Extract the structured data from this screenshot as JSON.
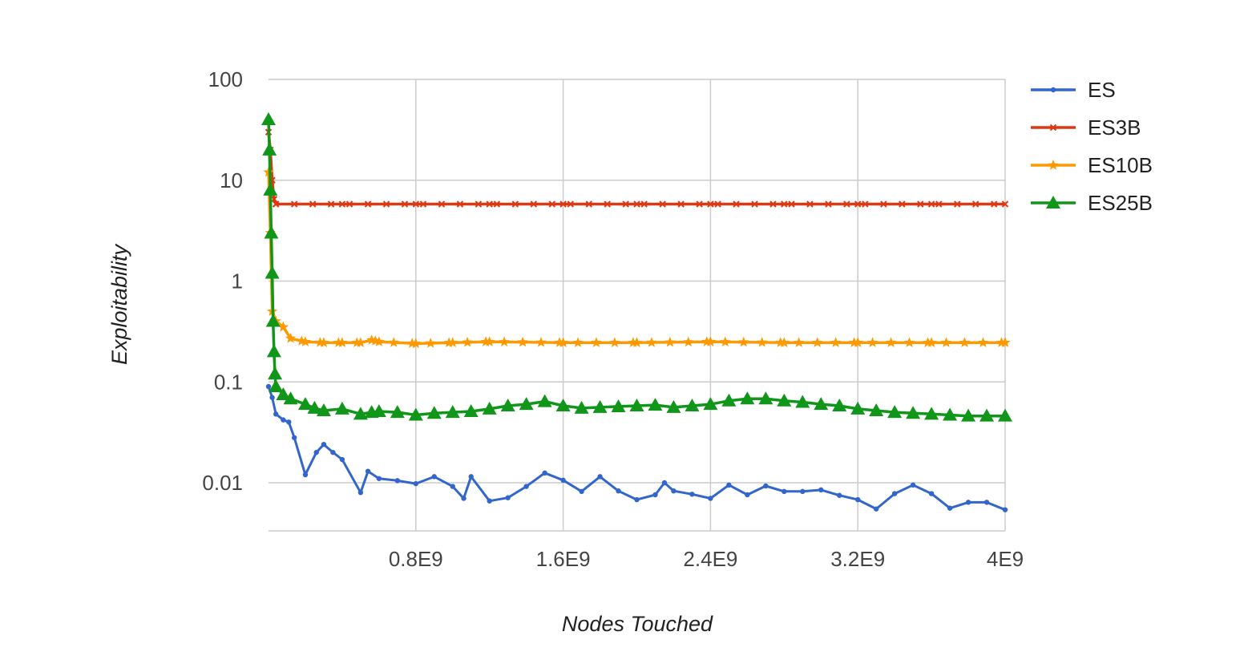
{
  "chart_data": {
    "type": "line",
    "title": "",
    "xlabel": "Nodes Touched",
    "ylabel": "Exploitability",
    "yscale": "log",
    "grid": true,
    "legend_position": "right",
    "xlim": [
      0,
      4000000000
    ],
    "ylim": [
      0.004,
      100
    ],
    "x_ticks": [
      {
        "value": 800000000,
        "label": "0.8E9"
      },
      {
        "value": 1600000000,
        "label": "1.6E9"
      },
      {
        "value": 2400000000,
        "label": "2.4E9"
      },
      {
        "value": 3200000000,
        "label": "3.2E9"
      },
      {
        "value": 4000000000,
        "label": "4E9"
      }
    ],
    "y_ticks": [
      {
        "value": 100,
        "label": "100"
      },
      {
        "value": 10,
        "label": "10"
      },
      {
        "value": 1,
        "label": "1"
      },
      {
        "value": 0.1,
        "label": "0.1"
      },
      {
        "value": 0.01,
        "label": "0.01"
      }
    ],
    "series": [
      {
        "name": "ES",
        "color": "#3366cc",
        "marker": "circle",
        "points": [
          [
            0,
            0.09
          ],
          [
            20000000,
            0.07
          ],
          [
            40000000,
            0.048
          ],
          [
            80000000,
            0.042
          ],
          [
            110000000,
            0.04
          ],
          [
            140000000,
            0.028
          ],
          [
            200000000,
            0.012
          ],
          [
            260000000,
            0.02
          ],
          [
            300000000,
            0.024
          ],
          [
            350000000,
            0.02
          ],
          [
            400000000,
            0.017
          ],
          [
            500000000,
            0.008
          ],
          [
            540000000,
            0.013
          ],
          [
            600000000,
            0.011
          ],
          [
            700000000,
            0.0105
          ],
          [
            800000000,
            0.0098
          ],
          [
            900000000,
            0.0115
          ],
          [
            1000000000,
            0.0092
          ],
          [
            1060000000,
            0.007
          ],
          [
            1100000000,
            0.0115
          ],
          [
            1200000000,
            0.0066
          ],
          [
            1300000000,
            0.0071
          ],
          [
            1400000000,
            0.0092
          ],
          [
            1500000000,
            0.0125
          ],
          [
            1600000000,
            0.0106
          ],
          [
            1700000000,
            0.0082
          ],
          [
            1800000000,
            0.0115
          ],
          [
            1900000000,
            0.0083
          ],
          [
            2000000000,
            0.0068
          ],
          [
            2100000000,
            0.0076
          ],
          [
            2150000000,
            0.01
          ],
          [
            2200000000,
            0.0083
          ],
          [
            2300000000,
            0.0077
          ],
          [
            2400000000,
            0.007
          ],
          [
            2500000000,
            0.0095
          ],
          [
            2600000000,
            0.0076
          ],
          [
            2700000000,
            0.0093
          ],
          [
            2800000000,
            0.0082
          ],
          [
            2900000000,
            0.0082
          ],
          [
            3000000000,
            0.0085
          ],
          [
            3100000000,
            0.0075
          ],
          [
            3200000000,
            0.0068
          ],
          [
            3300000000,
            0.0055
          ],
          [
            3400000000,
            0.0078
          ],
          [
            3500000000,
            0.0095
          ],
          [
            3600000000,
            0.0078
          ],
          [
            3700000000,
            0.0056
          ],
          [
            3800000000,
            0.0064
          ],
          [
            3900000000,
            0.0064
          ],
          [
            4000000000,
            0.0054
          ]
        ]
      },
      {
        "name": "ES3B",
        "color": "#dc3912",
        "marker": "x",
        "points": [
          [
            0,
            30
          ],
          [
            10000000,
            20
          ],
          [
            20000000,
            10
          ],
          [
            30000000,
            6.5
          ],
          [
            40000000,
            5.8
          ],
          [
            400000000,
            5.8
          ],
          [
            800000000,
            5.8
          ],
          [
            1200000000,
            5.8
          ],
          [
            1600000000,
            5.8
          ],
          [
            2000000000,
            5.8
          ],
          [
            2400000000,
            5.8
          ],
          [
            2800000000,
            5.8
          ],
          [
            3200000000,
            5.8
          ],
          [
            3600000000,
            5.8
          ],
          [
            4000000000,
            5.8
          ]
        ]
      },
      {
        "name": "ES10B",
        "color": "#ff9900",
        "marker": "star",
        "points": [
          [
            0,
            12
          ],
          [
            10000000,
            3
          ],
          [
            20000000,
            0.5
          ],
          [
            40000000,
            0.4
          ],
          [
            80000000,
            0.35
          ],
          [
            120000000,
            0.27
          ],
          [
            200000000,
            0.25
          ],
          [
            300000000,
            0.245
          ],
          [
            400000000,
            0.245
          ],
          [
            500000000,
            0.245
          ],
          [
            560000000,
            0.26
          ],
          [
            600000000,
            0.25
          ],
          [
            800000000,
            0.24
          ],
          [
            1000000000,
            0.245
          ],
          [
            1200000000,
            0.25
          ],
          [
            1600000000,
            0.245
          ],
          [
            2000000000,
            0.245
          ],
          [
            2400000000,
            0.25
          ],
          [
            2800000000,
            0.245
          ],
          [
            3200000000,
            0.245
          ],
          [
            3600000000,
            0.245
          ],
          [
            4000000000,
            0.245
          ]
        ]
      },
      {
        "name": "ES25B",
        "color": "#109618",
        "marker": "triangle",
        "points": [
          [
            0,
            40
          ],
          [
            5000000,
            20
          ],
          [
            10000000,
            8
          ],
          [
            15000000,
            3
          ],
          [
            20000000,
            1.2
          ],
          [
            25000000,
            0.4
          ],
          [
            30000000,
            0.2
          ],
          [
            35000000,
            0.12
          ],
          [
            40000000,
            0.09
          ],
          [
            80000000,
            0.075
          ],
          [
            120000000,
            0.068
          ],
          [
            200000000,
            0.06
          ],
          [
            250000000,
            0.055
          ],
          [
            300000000,
            0.052
          ],
          [
            400000000,
            0.054
          ],
          [
            500000000,
            0.048
          ],
          [
            560000000,
            0.05
          ],
          [
            600000000,
            0.051
          ],
          [
            700000000,
            0.05
          ],
          [
            800000000,
            0.047
          ],
          [
            900000000,
            0.049
          ],
          [
            1000000000,
            0.05
          ],
          [
            1100000000,
            0.051
          ],
          [
            1200000000,
            0.054
          ],
          [
            1300000000,
            0.058
          ],
          [
            1400000000,
            0.06
          ],
          [
            1500000000,
            0.064
          ],
          [
            1600000000,
            0.058
          ],
          [
            1700000000,
            0.055
          ],
          [
            1800000000,
            0.056
          ],
          [
            1900000000,
            0.057
          ],
          [
            2000000000,
            0.058
          ],
          [
            2100000000,
            0.059
          ],
          [
            2200000000,
            0.056
          ],
          [
            2300000000,
            0.058
          ],
          [
            2400000000,
            0.06
          ],
          [
            2500000000,
            0.065
          ],
          [
            2600000000,
            0.068
          ],
          [
            2700000000,
            0.068
          ],
          [
            2800000000,
            0.065
          ],
          [
            2900000000,
            0.063
          ],
          [
            3000000000,
            0.06
          ],
          [
            3100000000,
            0.058
          ],
          [
            3200000000,
            0.054
          ],
          [
            3300000000,
            0.052
          ],
          [
            3400000000,
            0.05
          ],
          [
            3500000000,
            0.049
          ],
          [
            3600000000,
            0.048
          ],
          [
            3700000000,
            0.047
          ],
          [
            3800000000,
            0.046
          ],
          [
            3900000000,
            0.046
          ],
          [
            4000000000,
            0.046
          ]
        ]
      }
    ]
  }
}
